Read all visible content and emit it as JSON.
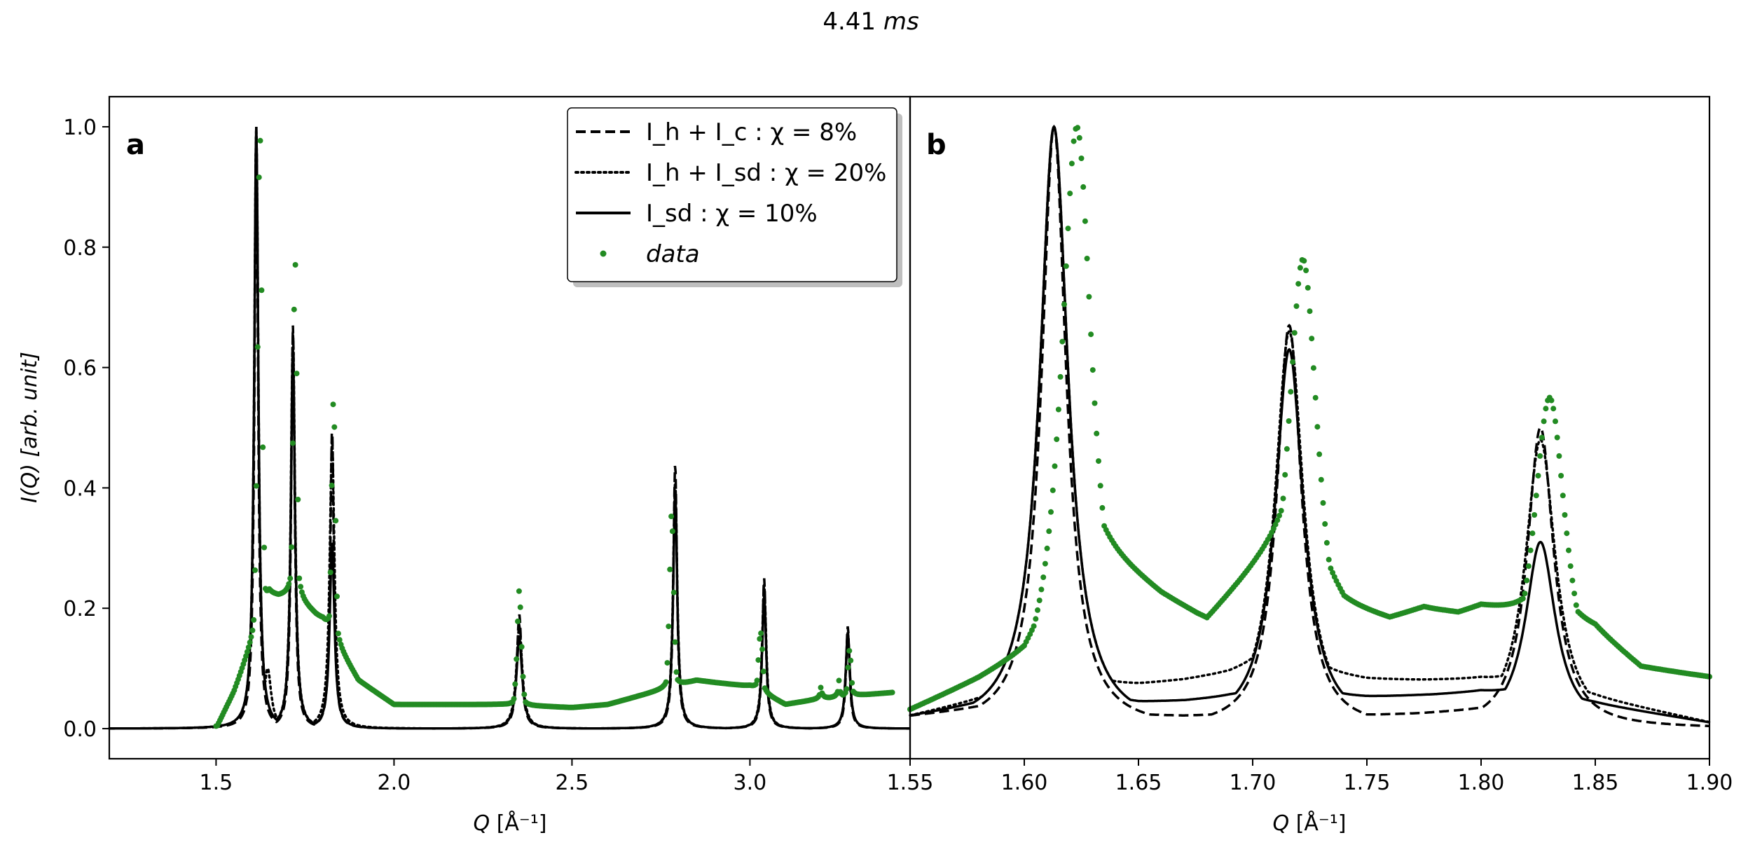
{
  "figure": {
    "title_value": "4.41",
    "title_unit": "ms"
  },
  "chart_data": [
    {
      "type": "line",
      "panel_label": "a",
      "xlabel_var": "Q",
      "xlabel_unit": "[Å⁻¹]",
      "ylabel_var": "I(Q)",
      "ylabel_unit": "[arb. unit]",
      "xlim": [
        1.2,
        3.45
      ],
      "ylim": [
        -0.05,
        1.05
      ],
      "xticks": [
        1.5,
        2.0,
        2.5,
        3.0
      ],
      "xtick_labels": [
        "1.5",
        "2.0",
        "2.5",
        "3.0"
      ],
      "yticks": [
        0.0,
        0.2,
        0.4,
        0.6,
        0.8,
        1.0
      ],
      "ytick_labels": [
        "0.0",
        "0.2",
        "0.4",
        "0.6",
        "0.8",
        "1.0"
      ],
      "grid": false,
      "legend_position": "top-right",
      "legend": [
        {
          "label": "I_h + I_c : χ = 8%",
          "style": "dashed",
          "color": "#000000"
        },
        {
          "label": "I_h + I_sd : χ = 20%",
          "style": "dotted",
          "color": "#000000"
        },
        {
          "label": "I_sd : χ = 10%",
          "style": "solid",
          "color": "#000000"
        },
        {
          "label": "data",
          "style": "markers",
          "color": "#228B22"
        }
      ],
      "series": [
        {
          "name": "Ih+Ic",
          "style": "dashed",
          "x_range": [
            1.2,
            3.45
          ],
          "peaks": [
            [
              1.613,
              1.0,
              0.006
            ],
            [
              1.716,
              0.67,
              0.006
            ],
            [
              1.826,
              0.5,
              0.006
            ],
            [
              2.352,
              0.19,
              0.008
            ],
            [
              2.79,
              0.44,
              0.006
            ],
            [
              3.04,
              0.25,
              0.006
            ],
            [
              3.275,
              0.17,
              0.006
            ]
          ]
        },
        {
          "name": "Ih+Isd",
          "style": "dotted",
          "x_range": [
            1.2,
            3.45
          ],
          "peaks": [
            [
              1.613,
              1.0,
              0.007
            ],
            [
              1.645,
              0.1,
              0.012
            ],
            [
              1.716,
              0.66,
              0.007
            ],
            [
              1.826,
              0.48,
              0.008
            ],
            [
              2.352,
              0.17,
              0.01
            ],
            [
              2.79,
              0.41,
              0.007
            ],
            [
              3.04,
              0.24,
              0.007
            ],
            [
              3.275,
              0.16,
              0.007
            ]
          ]
        },
        {
          "name": "Isd",
          "style": "solid",
          "x_range": [
            1.2,
            3.45
          ],
          "peaks": [
            [
              1.613,
              1.0,
              0.007
            ],
            [
              1.716,
              0.63,
              0.007
            ],
            [
              1.826,
              0.31,
              0.008
            ],
            [
              2.352,
              0.15,
              0.01
            ],
            [
              2.79,
              0.39,
              0.007
            ],
            [
              3.04,
              0.22,
              0.007
            ],
            [
              3.275,
              0.16,
              0.007
            ]
          ]
        },
        {
          "name": "data",
          "style": "markers",
          "x_range": [
            1.5,
            3.4
          ],
          "peaks": [
            [
              1.623,
              1.0,
              0.008
            ],
            [
              1.722,
              0.78,
              0.008
            ],
            [
              1.83,
              0.55,
              0.008
            ],
            [
              2.352,
              0.23,
              0.008
            ],
            [
              2.78,
              0.36,
              0.008
            ],
            [
              3.03,
              0.16,
              0.01
            ],
            [
              3.28,
              0.13,
              0.008
            ],
            [
              3.2,
              0.07,
              0.006
            ],
            [
              3.25,
              0.08,
              0.006
            ]
          ],
          "baseline": [
            [
              1.5,
              0.0
            ],
            [
              1.55,
              0.06
            ],
            [
              1.65,
              0.22
            ],
            [
              1.72,
              0.22
            ],
            [
              1.8,
              0.18
            ],
            [
              1.9,
              0.08
            ],
            [
              2.0,
              0.04
            ],
            [
              2.3,
              0.04
            ],
            [
              2.5,
              0.035
            ],
            [
              2.6,
              0.04
            ],
            [
              2.85,
              0.08
            ],
            [
              3.0,
              0.07
            ],
            [
              3.1,
              0.04
            ],
            [
              3.2,
              0.05
            ],
            [
              3.4,
              0.06
            ]
          ]
        }
      ]
    },
    {
      "type": "line",
      "panel_label": "b",
      "xlabel_var": "Q",
      "xlabel_unit": "[Å⁻¹]",
      "xlim": [
        1.55,
        1.9
      ],
      "ylim": [
        -0.05,
        1.05
      ],
      "xticks": [
        1.55,
        1.6,
        1.65,
        1.7,
        1.75,
        1.8,
        1.85,
        1.9
      ],
      "xtick_labels": [
        "1.55",
        "1.60",
        "1.65",
        "1.70",
        "1.75",
        "1.80",
        "1.85",
        "1.90"
      ],
      "grid": false,
      "series": [
        {
          "name": "Ih+Ic",
          "style": "dashed",
          "x_range": [
            1.55,
            1.9
          ],
          "peaks": [
            [
              1.613,
              1.0,
              0.0065
            ],
            [
              1.716,
              0.67,
              0.0065
            ],
            [
              1.826,
              0.5,
              0.007
            ]
          ],
          "baseline": [
            [
              1.55,
              0.02
            ],
            [
              1.6,
              0.04
            ],
            [
              1.65,
              0.02
            ],
            [
              1.69,
              0.02
            ],
            [
              1.75,
              0.02
            ],
            [
              1.8,
              0.03
            ],
            [
              1.9,
              0.0
            ]
          ]
        },
        {
          "name": "Ih+Isd",
          "style": "dotted",
          "x_range": [
            1.55,
            1.9
          ],
          "peaks": [
            [
              1.613,
              1.0,
              0.0075
            ],
            [
              1.716,
              0.66,
              0.0075
            ],
            [
              1.826,
              0.48,
              0.008
            ]
          ],
          "baseline": [
            [
              1.55,
              0.02
            ],
            [
              1.6,
              0.06
            ],
            [
              1.65,
              0.07
            ],
            [
              1.69,
              0.09
            ],
            [
              1.7,
              0.1
            ],
            [
              1.75,
              0.08
            ],
            [
              1.8,
              0.08
            ],
            [
              1.85,
              0.05
            ],
            [
              1.9,
              0.01
            ]
          ]
        },
        {
          "name": "Isd",
          "style": "solid",
          "x_range": [
            1.55,
            1.9
          ],
          "peaks": [
            [
              1.613,
              1.0,
              0.0075
            ],
            [
              1.716,
              0.63,
              0.0075
            ],
            [
              1.826,
              0.31,
              0.008
            ]
          ],
          "baseline": [
            [
              1.55,
              0.02
            ],
            [
              1.6,
              0.05
            ],
            [
              1.65,
              0.04
            ],
            [
              1.69,
              0.05
            ],
            [
              1.75,
              0.05
            ],
            [
              1.8,
              0.06
            ],
            [
              1.85,
              0.04
            ],
            [
              1.9,
              0.01
            ]
          ]
        },
        {
          "name": "data",
          "style": "markers",
          "x_range": [
            1.55,
            1.9
          ],
          "peaks": [
            [
              1.623,
              1.0,
              0.0085
            ],
            [
              1.722,
              0.78,
              0.0085
            ],
            [
              1.83,
              0.55,
              0.009
            ]
          ],
          "baseline": [
            [
              1.55,
              0.03
            ],
            [
              1.58,
              0.08
            ],
            [
              1.6,
              0.12
            ],
            [
              1.63,
              0.3
            ],
            [
              1.66,
              0.22
            ],
            [
              1.68,
              0.18
            ],
            [
              1.7,
              0.26
            ],
            [
              1.715,
              0.32
            ],
            [
              1.74,
              0.2
            ],
            [
              1.76,
              0.18
            ],
            [
              1.775,
              0.2
            ],
            [
              1.79,
              0.19
            ],
            [
              1.8,
              0.2
            ],
            [
              1.85,
              0.16
            ],
            [
              1.87,
              0.1
            ],
            [
              1.9,
              0.085
            ]
          ]
        }
      ]
    }
  ]
}
